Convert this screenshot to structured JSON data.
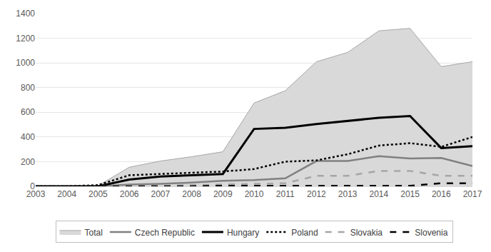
{
  "chart_data": {
    "type": "line",
    "categories": [
      "2003",
      "2004",
      "2005",
      "2006",
      "2007",
      "2008",
      "2009",
      "2010",
      "2011",
      "2012",
      "2013",
      "2014",
      "2015",
      "2016",
      "2017"
    ],
    "series": [
      {
        "name": "Total",
        "type": "area",
        "color": "#d9d9d9",
        "line_style": "solid",
        "values": [
          0,
          0,
          5,
          155,
          205,
          240,
          280,
          675,
          775,
          1010,
          1085,
          1260,
          1280,
          970,
          1010
        ]
      },
      {
        "name": "Czech Republic",
        "type": "line",
        "color": "#808080",
        "line_style": "solid",
        "values": [
          0,
          0,
          0,
          15,
          20,
          30,
          45,
          50,
          65,
          205,
          205,
          245,
          225,
          230,
          165
        ]
      },
      {
        "name": "Hungary",
        "type": "line",
        "color": "#000000",
        "line_style": "solid",
        "values": [
          0,
          0,
          0,
          55,
          80,
          90,
          100,
          465,
          475,
          505,
          530,
          555,
          570,
          310,
          325
        ]
      },
      {
        "name": "Poland",
        "type": "line",
        "color": "#000000",
        "line_style": "dotted",
        "values": [
          0,
          0,
          10,
          90,
          100,
          110,
          120,
          140,
          200,
          210,
          260,
          330,
          350,
          320,
          400
        ]
      },
      {
        "name": "Slovakia",
        "type": "line",
        "color": "#a6a6a6",
        "line_style": "dashed",
        "values": [
          0,
          0,
          0,
          5,
          5,
          10,
          15,
          20,
          25,
          85,
          85,
          125,
          125,
          85,
          85
        ]
      },
      {
        "name": "Slovenia",
        "type": "line",
        "color": "#000000",
        "line_style": "dashed",
        "values": [
          0,
          0,
          0,
          0,
          0,
          0,
          5,
          5,
          5,
          5,
          5,
          5,
          5,
          25,
          25
        ]
      }
    ],
    "ylim": [
      0,
      1400
    ],
    "yticks": [
      0,
      200,
      400,
      600,
      800,
      1000,
      1200,
      1400
    ],
    "grid": true,
    "legend": "bottom"
  }
}
